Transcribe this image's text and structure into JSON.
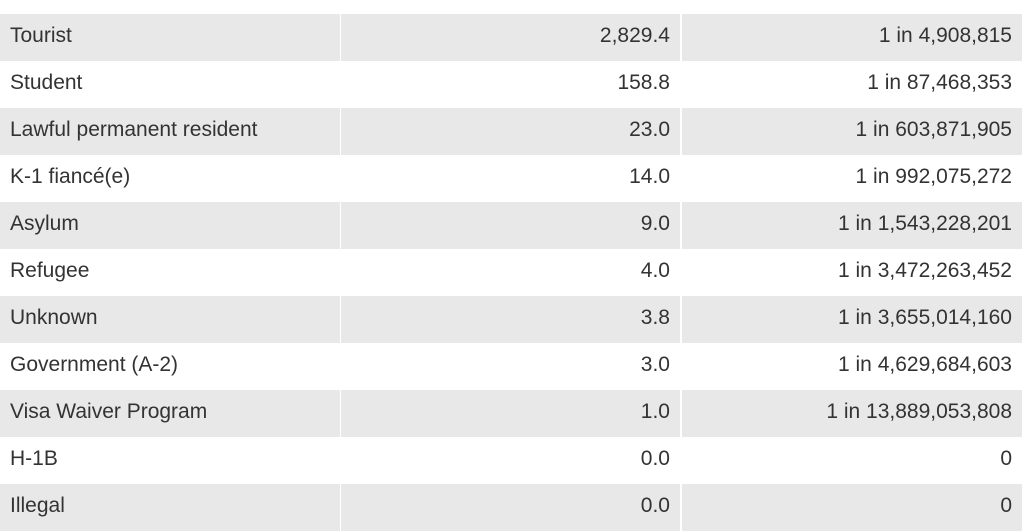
{
  "table": {
    "rows": [
      [
        "Tourist",
        "2,829.4",
        "1 in 4,908,815"
      ],
      [
        "Student",
        "158.8",
        "1 in 87,468,353"
      ],
      [
        "Lawful permanent resident",
        "23.0",
        "1 in 603,871,905"
      ],
      [
        "K-1 fiancé(e)",
        "14.0",
        "1 in 992,075,272"
      ],
      [
        "Asylum",
        "9.0",
        "1 in 1,543,228,201"
      ],
      [
        "Refugee",
        "4.0",
        "1 in 3,472,263,452"
      ],
      [
        "Unknown",
        "3.8",
        "1 in 3,655,014,160"
      ],
      [
        "Government (A-2)",
        "3.0",
        "1 in 4,629,684,603"
      ],
      [
        "Visa Waiver Program",
        "1.0",
        "1 in 13,889,053,808"
      ],
      [
        "H-1B",
        "0.0",
        "0"
      ],
      [
        "Illegal",
        "0.0",
        "0"
      ]
    ]
  }
}
